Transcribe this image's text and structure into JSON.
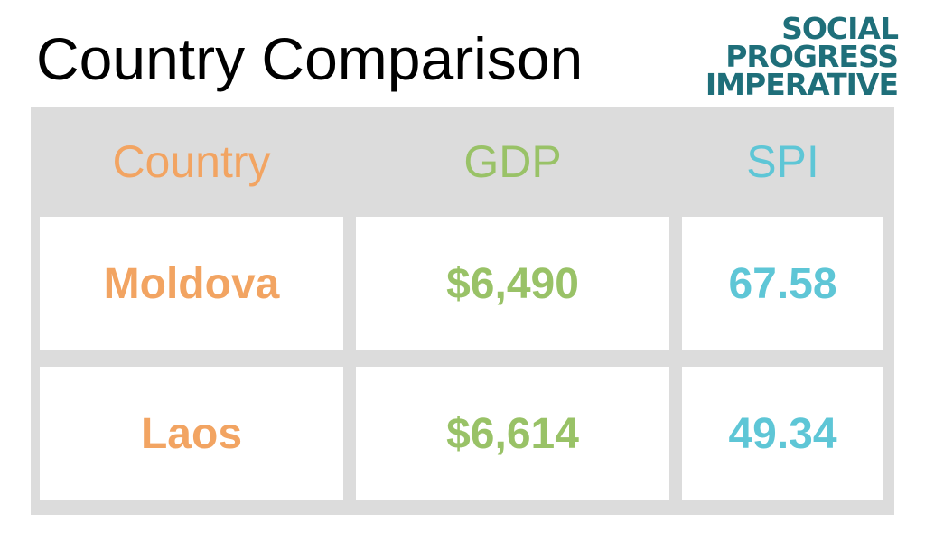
{
  "title": "Country Comparison",
  "logo": {
    "line1": "SOCIAL",
    "line2": "PROGRESS",
    "line3": "IMPERATIVE",
    "color": "#1f6f7a"
  },
  "table": {
    "headers": [
      "Country",
      "GDP",
      "SPI"
    ],
    "rows": [
      [
        "Moldova",
        "$6,490",
        "67.58"
      ],
      [
        "Laos",
        "$6,614",
        "49.34"
      ]
    ]
  },
  "colors": {
    "country": "#f2a462",
    "gdp": "#99c267",
    "spi": "#5ec6d6",
    "table_bg": "#dcdcdc"
  }
}
